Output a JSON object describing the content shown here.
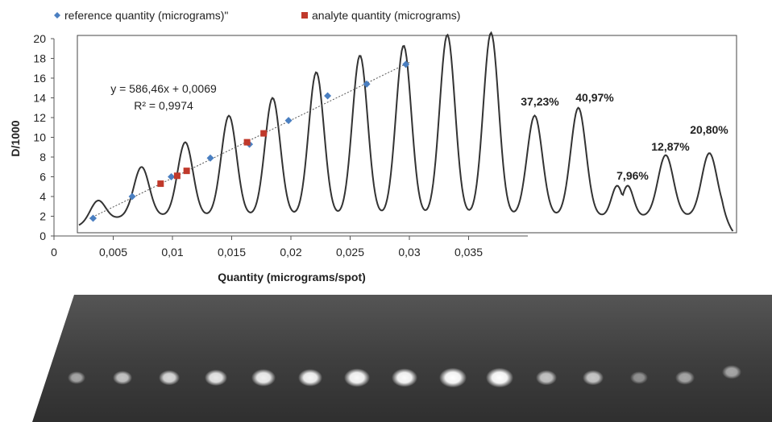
{
  "chart_data": {
    "type": "scatter",
    "legend": {
      "placement": "top-left",
      "items": [
        {
          "name": "reference quantity (micrograms)\"",
          "color": "#4a7fc1",
          "marker": "diamond"
        },
        {
          "name": "analyte quantity (micrograms)",
          "color": "#c0392b",
          "marker": "square"
        }
      ]
    },
    "xlabel": "Quantity (micrograms/spot)",
    "ylabel": "D/1000",
    "xlim": [
      0,
      0.04
    ],
    "ylim": [
      0,
      20
    ],
    "xticks": [
      "0",
      "0,005",
      "0,01",
      "0,015",
      "0,02",
      "0,025",
      "0,03",
      "0,035"
    ],
    "yticks": [
      "0",
      "2",
      "4",
      "6",
      "8",
      "10",
      "12",
      "14",
      "16",
      "18",
      "20"
    ],
    "grid": false,
    "series": [
      {
        "name": "reference quantity (micrograms)\"",
        "color": "#4a7fc1",
        "x": [
          0.0033,
          0.0066,
          0.0099,
          0.0132,
          0.0165,
          0.0198,
          0.0231,
          0.0264,
          0.0297
        ],
        "y": [
          1.8,
          4.0,
          6.0,
          7.9,
          9.3,
          11.7,
          14.2,
          15.4,
          17.4
        ]
      },
      {
        "name": "analyte quantity (micrograms)",
        "color": "#c0392b",
        "x": [
          0.009,
          0.0104,
          0.0112,
          0.0163,
          0.0177
        ],
        "y": [
          5.3,
          6.1,
          6.6,
          9.5,
          10.4
        ]
      }
    ],
    "trendline": {
      "equation": "y = 586,46x + 0,0069",
      "r2": "R² = 0,9974",
      "slope": 586.46,
      "intercept": 0.0069
    },
    "densitogram": {
      "peak_heights": [
        4.2,
        7.0,
        9.5,
        12.2,
        14.0,
        16.6,
        18.3,
        19.3,
        20.4,
        20.6,
        12.2,
        13.0,
        5.1,
        8.2,
        8.4
      ],
      "color": "#333333"
    },
    "annotations": [
      "37,23%",
      "40,97%",
      "7,96%",
      "12,87%",
      "20,80%"
    ]
  }
}
